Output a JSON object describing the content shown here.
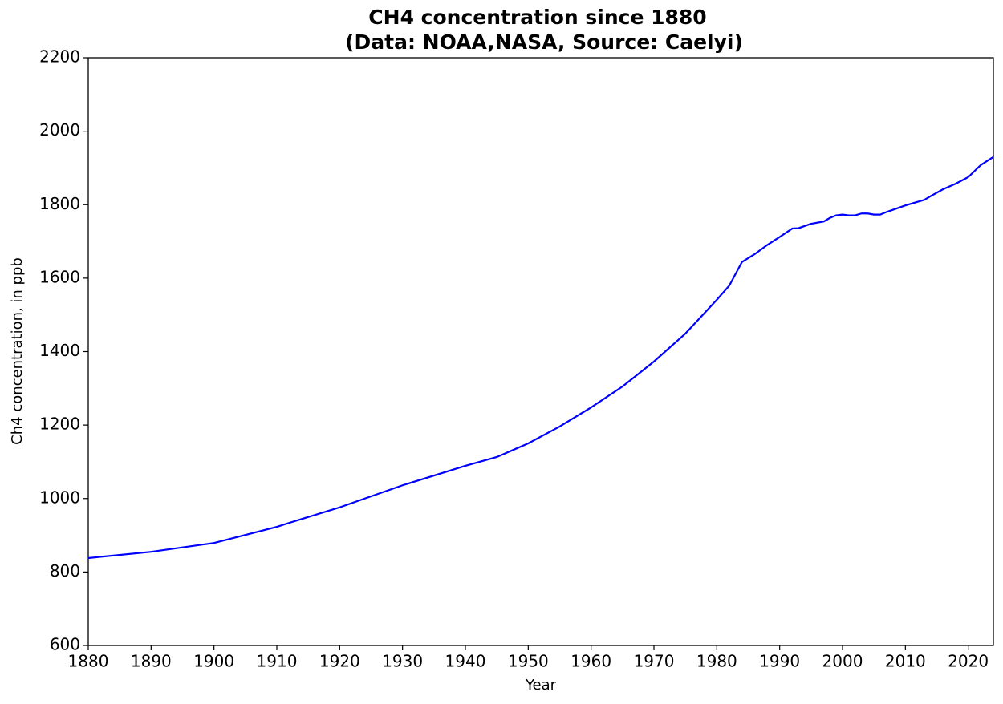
{
  "chart_data": {
    "type": "line",
    "title": "CH4 concentration since 1880",
    "subtitle": "(Data: NOAA,NASA, Source: Caelyi)",
    "x_label": "Year",
    "y_label": "Ch4 concentration, in ppb",
    "x": [
      1880,
      1890,
      1900,
      1910,
      1912,
      1920,
      1930,
      1940,
      1945,
      1950,
      1955,
      1960,
      1965,
      1970,
      1975,
      1980,
      1982,
      1984,
      1986,
      1988,
      1990,
      1992,
      1993,
      1995,
      1997,
      1998,
      1999,
      2000,
      2001,
      2002,
      2003,
      2004,
      2005,
      2006,
      2007,
      2010,
      2013,
      2014,
      2016,
      2018,
      2020,
      2022,
      2024
    ],
    "values": [
      838,
      855,
      879,
      923,
      934,
      976,
      1036,
      1089,
      1113,
      1150,
      1196,
      1248,
      1305,
      1373,
      1449,
      1541,
      1580,
      1644,
      1665,
      1690,
      1712,
      1735,
      1736,
      1748,
      1754,
      1764,
      1771,
      1773,
      1771,
      1771,
      1776,
      1776,
      1773,
      1773,
      1780,
      1798,
      1813,
      1823,
      1842,
      1857,
      1875,
      1908,
      1930
    ],
    "color": "#0000ff",
    "xlim": [
      1880,
      2024
    ],
    "xticks": [
      1880,
      1890,
      1900,
      1910,
      1920,
      1930,
      1940,
      1950,
      1960,
      1970,
      1980,
      1990,
      2000,
      2010,
      2020
    ],
    "ylim": [
      600,
      2200
    ],
    "yticks": [
      600,
      800,
      1000,
      1200,
      1400,
      1600,
      1800,
      2000,
      2200
    ],
    "grid": false
  }
}
